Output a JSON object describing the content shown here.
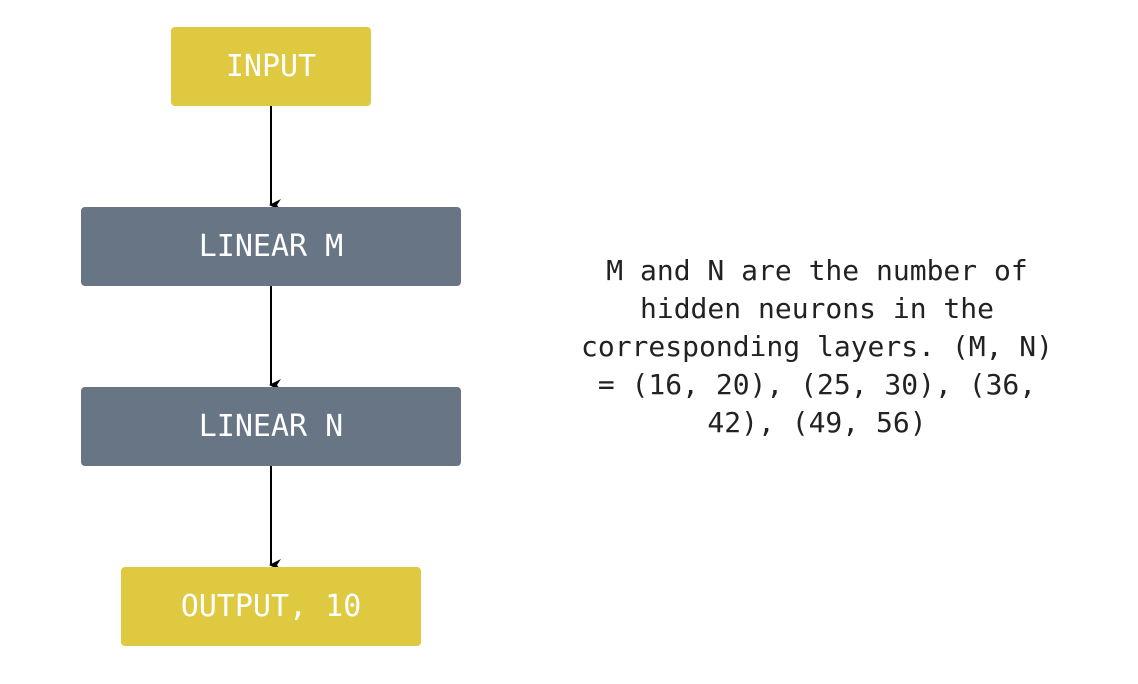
{
  "nodes": {
    "input": "INPUT",
    "linear_m": "LINEAR M",
    "linear_n": "LINEAR N",
    "output": "OUTPUT, 10"
  },
  "note": "M and N are the number of\nhidden neurons in the\ncorresponding layers. (M, N)\n= (16, 20), (25, 30), (36,\n42), (49, 56)",
  "colors": {
    "io_node": "#dfc940",
    "layer_node": "#687585",
    "arrow": "#000000"
  }
}
